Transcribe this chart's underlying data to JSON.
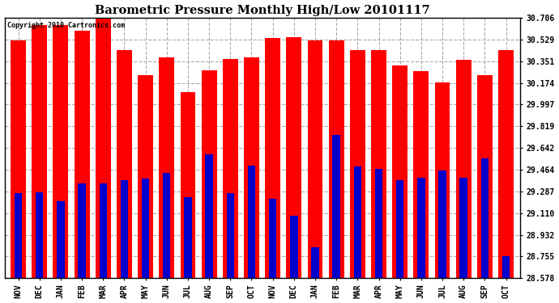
{
  "title": "Barometric Pressure Monthly High/Low 20101117",
  "copyright": "Copyright 2010 Cartronics.com",
  "months": [
    "NOV",
    "DEC",
    "JAN",
    "FEB",
    "MAR",
    "APR",
    "MAY",
    "JUN",
    "JUL",
    "AUG",
    "SEP",
    "OCT",
    "NOV",
    "DEC",
    "JAN",
    "FEB",
    "MAR",
    "APR",
    "MAY",
    "JUN",
    "JUL",
    "AUG",
    "SEP",
    "OCT"
  ],
  "highs": [
    30.52,
    30.65,
    30.65,
    30.6,
    30.71,
    30.44,
    30.24,
    30.38,
    30.1,
    30.28,
    30.37,
    30.38,
    30.54,
    30.55,
    30.52,
    30.52,
    30.44,
    30.44,
    30.32,
    30.27,
    30.18,
    30.36,
    30.24,
    30.44
  ],
  "lows": [
    29.27,
    29.28,
    29.21,
    29.35,
    29.35,
    29.38,
    29.39,
    29.44,
    29.24,
    29.59,
    29.27,
    29.5,
    29.23,
    29.09,
    28.83,
    29.75,
    29.49,
    29.47,
    29.38,
    29.4,
    29.46,
    29.4,
    29.56,
    28.76
  ],
  "red_bar_width": 0.72,
  "blue_bar_width": 0.36,
  "high_color": "#ff0000",
  "low_color": "#0000cc",
  "bg_color": "#ffffff",
  "grid_color": "#aaaaaa",
  "yticks": [
    28.578,
    28.755,
    28.932,
    29.11,
    29.287,
    29.464,
    29.642,
    29.819,
    29.997,
    30.174,
    30.351,
    30.529,
    30.706
  ],
  "ymin": 28.578,
  "ymax": 30.706
}
